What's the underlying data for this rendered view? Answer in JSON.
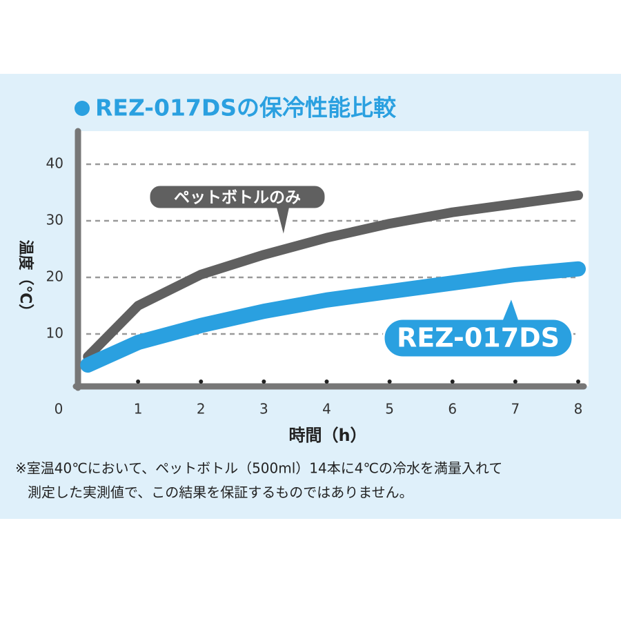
{
  "chart_data": {
    "type": "line",
    "title": "REZ-017DSの保冷性能比較",
    "x_label": "時間（h）",
    "y_label": "温度（℃）",
    "x": [
      0.2,
      1,
      2,
      3,
      4,
      5,
      6,
      7,
      8
    ],
    "series": [
      {
        "name": "ペットボトルのみ",
        "color": "#606060",
        "values": [
          6,
          15,
          20.5,
          24,
          27,
          29.5,
          31.5,
          33,
          34.5
        ]
      },
      {
        "name": "REZ-017DS",
        "color": "#2aa0e0",
        "values": [
          4.5,
          8.5,
          11.5,
          14,
          16,
          17.5,
          19,
          20.5,
          21.5
        ]
      }
    ],
    "xlim": [
      0,
      8
    ],
    "ylim": [
      0,
      45
    ],
    "xticks": [
      0,
      1,
      2,
      3,
      4,
      5,
      6,
      7,
      8
    ],
    "yticks": [
      10,
      20,
      30,
      40
    ],
    "grid": true,
    "footnote": [
      "※室温40℃において、ペットボトル（500ml）14本に4℃の冷水を満量入れて",
      "測定した実測値で、この結果を保証するものではありません。"
    ]
  }
}
